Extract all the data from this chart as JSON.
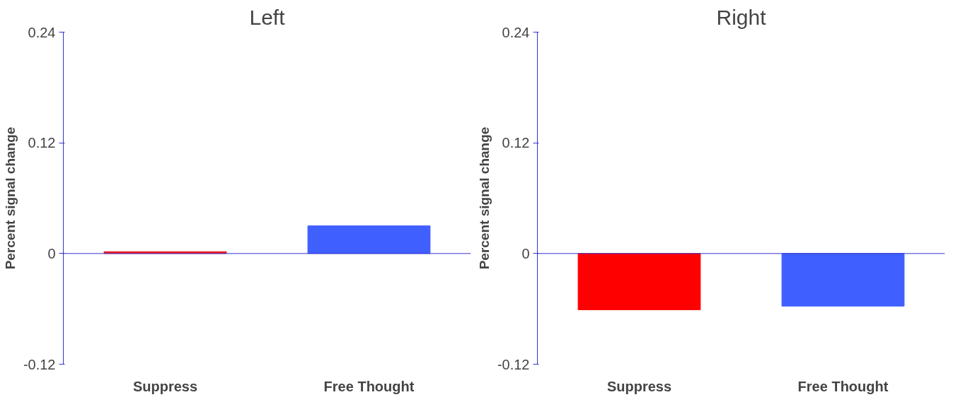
{
  "chart_data": [
    {
      "type": "bar",
      "title": "Left",
      "ylabel": "Percent signal change",
      "categories": [
        "Suppress",
        "Free Thought"
      ],
      "values": [
        0.002,
        0.03
      ],
      "colors": [
        "#e8141a",
        "#3f5fff"
      ],
      "ref_lines": [
        {
          "axis": "y",
          "value": 0,
          "color": "#3333cc"
        }
      ],
      "ylim": [
        -0.12,
        0.24
      ],
      "yticks": [
        -0.12,
        0,
        0.12,
        0.24
      ],
      "grid": false,
      "legend": false
    },
    {
      "type": "bar",
      "title": "Right",
      "ylabel": "Percent signal change",
      "categories": [
        "Suppress",
        "Free Thought"
      ],
      "values": [
        -0.061,
        -0.057
      ],
      "colors": [
        "#ff0000",
        "#3f5fff"
      ],
      "ref_lines": [
        {
          "axis": "y",
          "value": 0,
          "color": "#3333cc"
        }
      ],
      "ylim": [
        -0.12,
        0.24
      ],
      "yticks": [
        -0.12,
        0,
        0.12,
        0.24
      ],
      "grid": false,
      "legend": false
    }
  ]
}
